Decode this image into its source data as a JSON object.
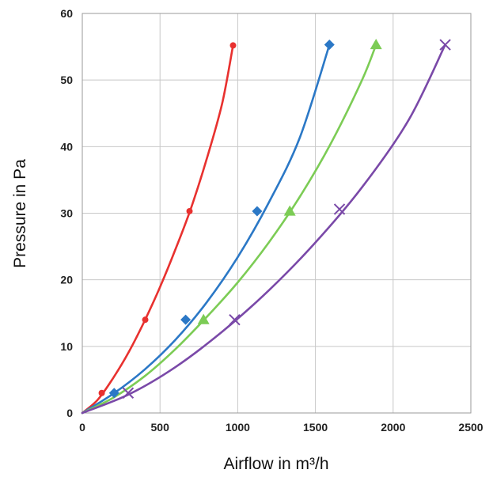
{
  "chart_data": {
    "type": "line",
    "title": "",
    "xlabel": "Airflow in m³/h",
    "ylabel": "Pressure in Pa",
    "xlim": [
      0,
      2500
    ],
    "ylim": [
      0,
      60
    ],
    "x_ticks": [
      "0",
      "500",
      "1000",
      "1500",
      "2000",
      "2500"
    ],
    "y_ticks": [
      "0",
      "10",
      "20",
      "30",
      "40",
      "50",
      "60"
    ],
    "grid": true,
    "legend": "none",
    "series": [
      {
        "color": "#e8312f",
        "marker": "circle",
        "points": [
          [
            0,
            0
          ],
          [
            125,
            3
          ],
          [
            405,
            14
          ],
          [
            690,
            30.3
          ],
          [
            970,
            55.2
          ]
        ],
        "curve": [
          [
            0,
            0
          ],
          [
            100,
            2.0
          ],
          [
            200,
            5.3
          ],
          [
            300,
            9.2
          ],
          [
            400,
            13.8
          ],
          [
            500,
            18.9
          ],
          [
            600,
            24.6
          ],
          [
            700,
            30.8
          ],
          [
            800,
            38.1
          ],
          [
            900,
            46.5
          ],
          [
            970,
            55.2
          ]
        ]
      },
      {
        "color": "#2b78c6",
        "marker": "diamond",
        "points": [
          [
            0,
            0
          ],
          [
            205,
            3
          ],
          [
            665,
            14
          ],
          [
            1125,
            30.3
          ],
          [
            1590,
            55.3
          ]
        ],
        "curve": [
          [
            0,
            0
          ],
          [
            200,
            2.9
          ],
          [
            400,
            6.5
          ],
          [
            600,
            11.0
          ],
          [
            800,
            16.6
          ],
          [
            1000,
            23.4
          ],
          [
            1200,
            31.6
          ],
          [
            1400,
            41.4
          ],
          [
            1590,
            55.3
          ]
        ]
      },
      {
        "color": "#7ccc55",
        "marker": "triangle",
        "points": [
          [
            0,
            0
          ],
          [
            780,
            14
          ],
          [
            1335,
            30.3
          ],
          [
            1890,
            55.3
          ]
        ],
        "curve": [
          [
            0,
            0
          ],
          [
            200,
            2.3
          ],
          [
            400,
            5.5
          ],
          [
            600,
            9.6
          ],
          [
            800,
            14.4
          ],
          [
            1000,
            19.6
          ],
          [
            1200,
            25.6
          ],
          [
            1400,
            32.5
          ],
          [
            1600,
            40.5
          ],
          [
            1800,
            50.0
          ],
          [
            1890,
            55.3
          ]
        ]
      },
      {
        "color": "#7a49a8",
        "marker": "cross",
        "points": [
          [
            0,
            0
          ],
          [
            295,
            3
          ],
          [
            980,
            14
          ],
          [
            1655,
            30.6
          ],
          [
            2335,
            55.3
          ]
        ],
        "curve": [
          [
            0,
            0
          ],
          [
            300,
            2.8
          ],
          [
            600,
            6.9
          ],
          [
            900,
            12.2
          ],
          [
            1200,
            18.4
          ],
          [
            1500,
            25.6
          ],
          [
            1800,
            33.9
          ],
          [
            2100,
            44.0
          ],
          [
            2335,
            55.3
          ]
        ]
      }
    ]
  }
}
